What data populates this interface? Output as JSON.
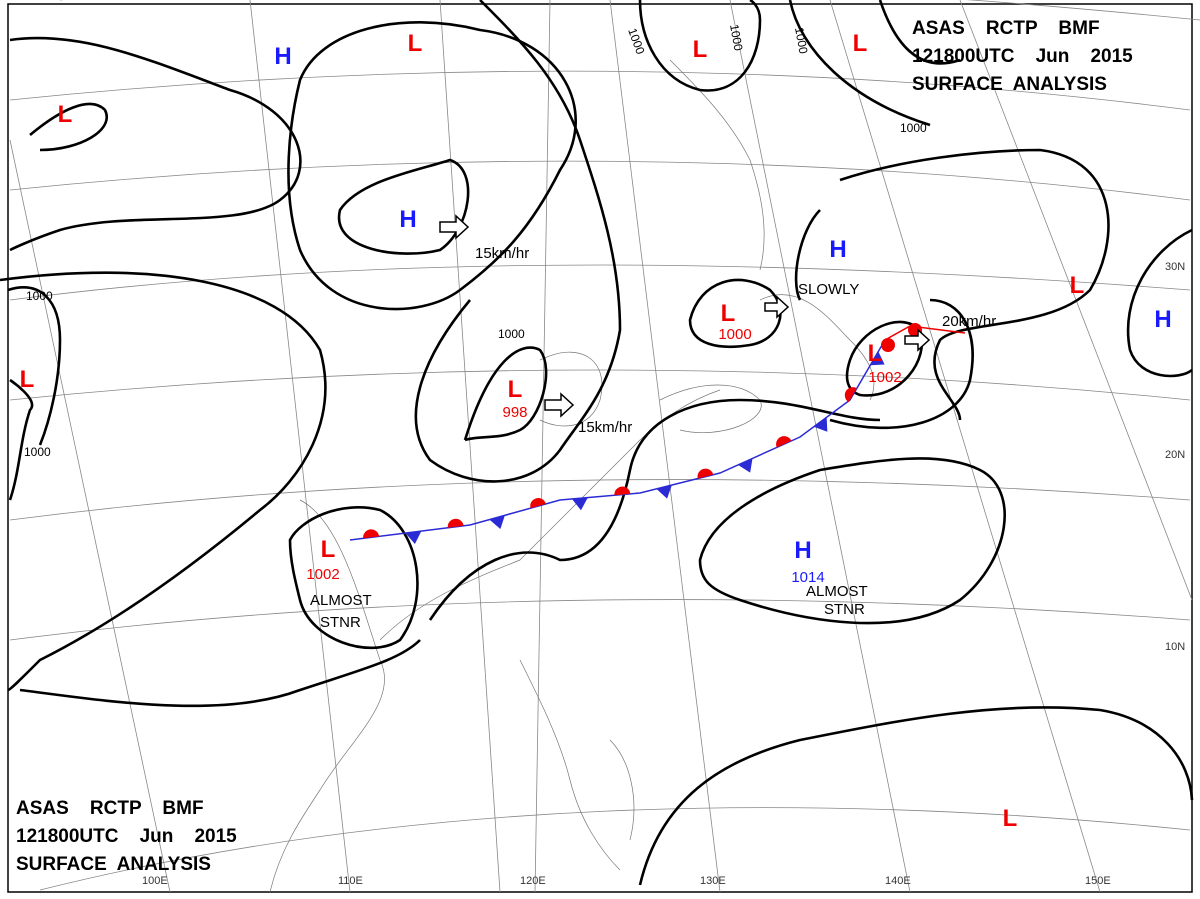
{
  "header": {
    "lines": [
      "ASAS    RCTP    BMF",
      "121800UTC    Jun    2015",
      "SURFACE  ANALYSIS"
    ]
  },
  "centers": [
    {
      "label": "H"
    },
    {
      "label": "L"
    },
    {
      "label": "L"
    },
    {
      "label": "H"
    },
    {
      "label": "L"
    },
    {
      "label": "L"
    },
    {
      "label": "H"
    },
    {
      "label": "L"
    },
    {
      "label": "H"
    },
    {
      "label": "L"
    },
    {
      "label": "L",
      "pressure": "1000"
    },
    {
      "label": "L",
      "pressure": "998"
    },
    {
      "label": "L",
      "pressure": "1002"
    },
    {
      "label": "L",
      "pressure": "1002"
    },
    {
      "label": "H",
      "pressure": "1014"
    },
    {
      "label": "L"
    }
  ],
  "motions": [
    "15km/hr",
    "15km/hr",
    "SLOWLY",
    "20km/hr",
    [
      "ALMOST",
      "STNR"
    ],
    [
      "ALMOST",
      "STNR"
    ]
  ],
  "isobar_label": "1000",
  "longitudes": [
    "100E",
    "110E",
    "120E",
    "130E",
    "140E",
    "150E"
  ],
  "latitudes": [
    "30N",
    "20N",
    "10N"
  ]
}
